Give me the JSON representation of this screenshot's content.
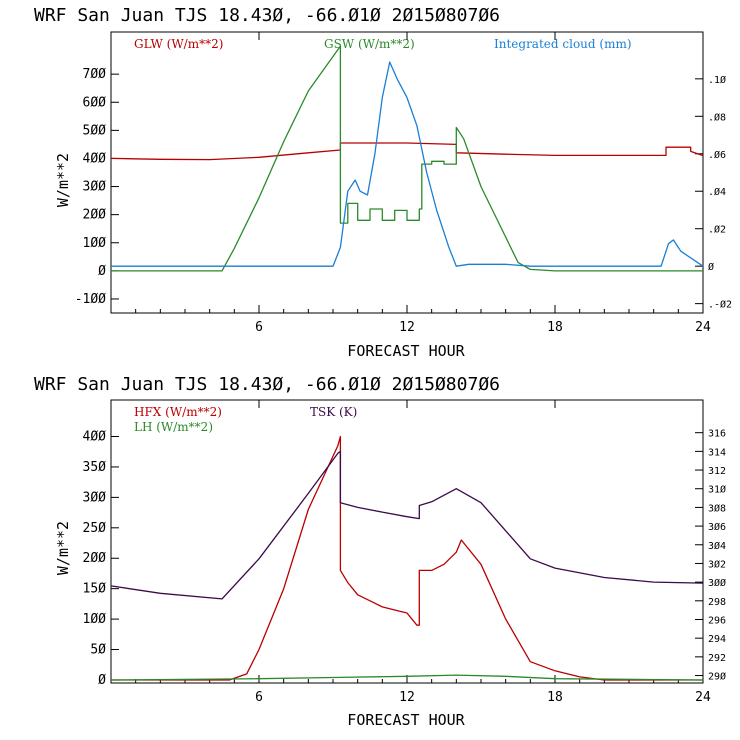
{
  "colors": {
    "red": "#b80000",
    "green": "#2a8a2a",
    "blue": "#1a7fd4",
    "purple": "#3a0a4a"
  },
  "chart_data": [
    {
      "type": "line",
      "title": "WRF  San Juan TJS  18.43Ø, -66.Ø1Ø  2Ø15Ø807Ø6",
      "xlabel": "FORECAST HOUR",
      "ylabel": "W/m**2",
      "xlim": [
        0,
        24
      ],
      "ylim": [
        -150,
        850
      ],
      "y2lim": [
        -0.025,
        0.125
      ],
      "x_ticks": [
        6,
        12,
        18,
        24
      ],
      "x_tick_labels": [
        "6",
        "12",
        "18",
        "24"
      ],
      "y_ticks": [
        -100,
        0,
        100,
        200,
        300,
        400,
        500,
        600,
        700
      ],
      "y_tick_labels": [
        "-1ØØ",
        "Ø",
        "1ØØ",
        "2ØØ",
        "3ØØ",
        "4ØØ",
        "5ØØ",
        "6ØØ",
        "7ØØ"
      ],
      "y2_ticks": [
        -0.02,
        0,
        0.02,
        0.04,
        0.06,
        0.08,
        0.1
      ],
      "y2_tick_labels": [
        ".-Ø2",
        "Ø",
        ".Ø2",
        ".Ø4",
        ".Ø6",
        ".Ø8",
        ".1Ø"
      ],
      "series": [
        {
          "name": "GLW (W/m**2)",
          "axis": "left",
          "color": "#b80000",
          "x": [
            0,
            2,
            4,
            6,
            8,
            9.3,
            9.3,
            12,
            14,
            14,
            16,
            18,
            22.5,
            22.5,
            23.5,
            23.5,
            24
          ],
          "y": [
            400,
            397,
            396,
            404,
            420,
            430,
            455,
            455,
            450,
            420,
            415,
            411,
            411,
            440,
            440,
            425,
            410
          ]
        },
        {
          "name": "GSW (W/m**2)",
          "axis": "left",
          "color": "#2a8a2a",
          "x": [
            0,
            4.5,
            5,
            6,
            7,
            8,
            9.3,
            9.3,
            9.6,
            9.6,
            10,
            10,
            10.5,
            10.5,
            11,
            11,
            11.5,
            11.5,
            12,
            12,
            12.5,
            12.5,
            12.6,
            12.6,
            13,
            13,
            13.5,
            13.5,
            14,
            14,
            14.3,
            15,
            16,
            16.5,
            17,
            18,
            24
          ],
          "y": [
            0,
            0,
            80,
            260,
            460,
            640,
            800,
            170,
            170,
            240,
            240,
            180,
            180,
            220,
            220,
            180,
            180,
            215,
            215,
            180,
            180,
            220,
            220,
            380,
            380,
            390,
            390,
            380,
            380,
            510,
            470,
            300,
            120,
            30,
            5,
            0,
            0
          ]
        },
        {
          "name": "Integrated cloud (mm)",
          "axis": "right",
          "color": "#1a7fd4",
          "x": [
            0,
            9.0,
            9.3,
            9.6,
            9.9,
            10.1,
            10.4,
            10.7,
            11.0,
            11.3,
            11.6,
            12.0,
            12.4,
            12.8,
            13.2,
            13.7,
            14.0,
            14.5,
            16,
            17,
            22.3,
            22.6,
            22.8,
            23.1,
            24
          ],
          "y": [
            0,
            0,
            0.01,
            0.04,
            0.046,
            0.04,
            0.038,
            0.06,
            0.09,
            0.109,
            0.1,
            0.09,
            0.075,
            0.05,
            0.03,
            0.01,
            0,
            0.001,
            0.001,
            0,
            0,
            0.012,
            0.014,
            0.008,
            0
          ]
        }
      ]
    },
    {
      "type": "line",
      "title": "WRF  San Juan TJS  18.43Ø, -66.Ø1Ø  2Ø15Ø807Ø6",
      "xlabel": "FORECAST HOUR",
      "ylabel": "W/m**2",
      "xlim": [
        0,
        24
      ],
      "ylim": [
        -5,
        460
      ],
      "y2lim": [
        289.2,
        319.5
      ],
      "x_ticks": [
        6,
        12,
        18,
        24
      ],
      "x_tick_labels": [
        "6",
        "12",
        "18",
        "24"
      ],
      "y_ticks": [
        0,
        50,
        100,
        150,
        200,
        250,
        300,
        350,
        400
      ],
      "y_tick_labels": [
        "Ø",
        "5Ø",
        "1ØØ",
        "15Ø",
        "2ØØ",
        "25Ø",
        "3ØØ",
        "35Ø",
        "4ØØ"
      ],
      "y2_ticks": [
        290,
        292,
        294,
        296,
        298,
        300,
        302,
        304,
        306,
        308,
        310,
        312,
        314,
        316
      ],
      "y2_tick_labels": [
        "29Ø",
        "292",
        "294",
        "296",
        "298",
        "3ØØ",
        "3Ø2",
        "3Ø4",
        "3Ø6",
        "3Ø8",
        "31Ø",
        "312",
        "314",
        "316"
      ],
      "series": [
        {
          "name": "HFX (W/m**2)",
          "axis": "left",
          "color": "#b80000",
          "x": [
            0,
            4.8,
            5.5,
            6,
            7,
            8,
            9.2,
            9.3,
            9.3,
            9.6,
            10,
            10.5,
            11,
            11.5,
            12,
            12.4,
            12.5,
            12.5,
            13,
            13.5,
            14,
            14.2,
            15,
            16,
            17,
            18,
            19,
            20,
            22,
            24
          ],
          "y": [
            0,
            0,
            10,
            50,
            150,
            280,
            385,
            400,
            180,
            160,
            140,
            130,
            120,
            115,
            110,
            90,
            90,
            180,
            180,
            190,
            210,
            230,
            190,
            100,
            30,
            15,
            5,
            0,
            0,
            0
          ]
        },
        {
          "name": "LH (W/m**2)",
          "axis": "left",
          "color": "#2a8a2a",
          "x": [
            0,
            6,
            9,
            12,
            14,
            16,
            18,
            24
          ],
          "y": [
            0,
            2,
            4,
            6,
            8,
            6,
            2,
            0
          ]
        },
        {
          "name": "TSK (K)",
          "axis": "right",
          "color": "#3a0a4a",
          "x": [
            0,
            2,
            4.5,
            6,
            8,
            9.2,
            9.3,
            9.3,
            10,
            11,
            12,
            12.5,
            12.5,
            13,
            14,
            15,
            16,
            17,
            18,
            20,
            22,
            24
          ],
          "y": [
            299.6,
            298.8,
            298.2,
            302.5,
            309.5,
            313.8,
            314.0,
            308.5,
            308.0,
            307.5,
            307.0,
            306.8,
            308.2,
            308.6,
            310.0,
            308.5,
            305.5,
            302.5,
            301.5,
            300.5,
            300.0,
            299.9
          ]
        }
      ]
    }
  ]
}
